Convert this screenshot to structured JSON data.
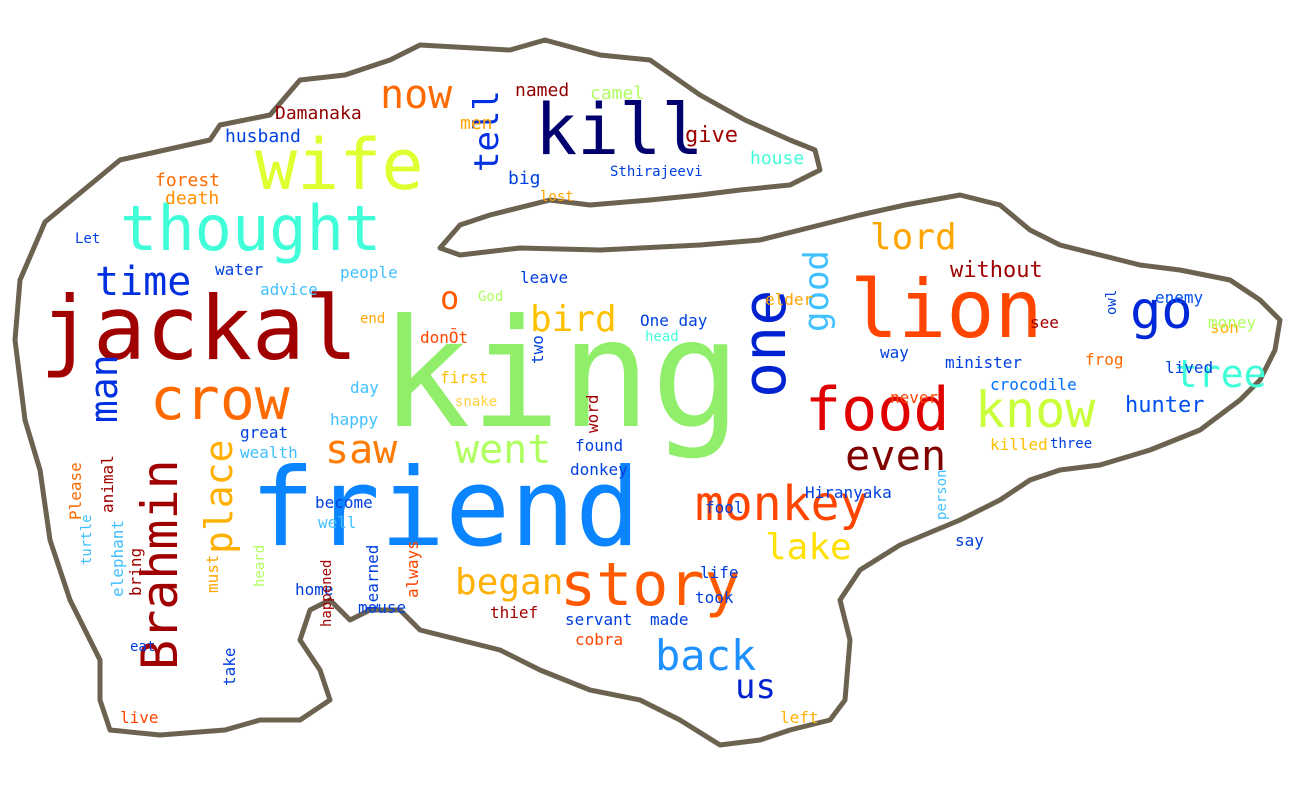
{
  "words": [
    {
      "text": "king",
      "color": "#90ee6a"
    },
    {
      "text": "friend",
      "color": "#0a84ff"
    },
    {
      "text": "jackal",
      "color": "#a00000"
    },
    {
      "text": "lion",
      "color": "#ff4500"
    },
    {
      "text": "wife",
      "color": "#e0ff30"
    },
    {
      "text": "kill",
      "color": "#00006e"
    },
    {
      "text": "thought",
      "color": "#40ffd8"
    },
    {
      "text": "one",
      "color": "#0022d0"
    },
    {
      "text": "crow",
      "color": "#ff6a00"
    },
    {
      "text": "food",
      "color": "#e00000"
    },
    {
      "text": "story",
      "color": "#ff5a00"
    },
    {
      "text": "Brahmin",
      "color": "#a00000"
    },
    {
      "text": "monkey",
      "color": "#ff4500"
    },
    {
      "text": "know",
      "color": "#c8ff3a"
    },
    {
      "text": "go",
      "color": "#0028d8"
    },
    {
      "text": "even",
      "color": "#800000"
    },
    {
      "text": "time",
      "color": "#0030e0"
    },
    {
      "text": "went",
      "color": "#b0ff60"
    },
    {
      "text": "saw",
      "color": "#ff7a00"
    },
    {
      "text": "now",
      "color": "#ff6a00"
    },
    {
      "text": "place",
      "color": "#ffb000"
    },
    {
      "text": "man",
      "color": "#0030e0"
    },
    {
      "text": "back",
      "color": "#1e90ff"
    },
    {
      "text": "lake",
      "color": "#ffe000"
    },
    {
      "text": "began",
      "color": "#ffb000"
    },
    {
      "text": "tell",
      "color": "#0030e0"
    },
    {
      "text": "good",
      "color": "#40c0ff"
    },
    {
      "text": "tree",
      "color": "#40ffd8"
    },
    {
      "text": "lord",
      "color": "#ffa500"
    },
    {
      "text": "bird",
      "color": "#ffc000"
    },
    {
      "text": "o",
      "color": "#ff5a00"
    },
    {
      "text": "us",
      "color": "#0022d0"
    },
    {
      "text": "hunter",
      "color": "#0050f0"
    },
    {
      "text": "without",
      "color": "#a00000"
    },
    {
      "text": "give",
      "color": "#a00000"
    },
    {
      "text": "camel",
      "color": "#b0ff60"
    },
    {
      "text": "named",
      "color": "#900000"
    },
    {
      "text": "Damanaka",
      "color": "#900000"
    },
    {
      "text": "husband",
      "color": "#0040e0"
    },
    {
      "text": "house",
      "color": "#40ffd8"
    },
    {
      "text": "men",
      "color": "#ffa500"
    },
    {
      "text": "forest",
      "color": "#ff6a00"
    },
    {
      "text": "death",
      "color": "#ff9000"
    },
    {
      "text": "big",
      "color": "#0040e0"
    },
    {
      "text": "lost",
      "color": "#ffa500"
    },
    {
      "text": "Sthirajeevi",
      "color": "#0040e0"
    },
    {
      "text": "water",
      "color": "#0040e0"
    },
    {
      "text": "people",
      "color": "#40c0ff"
    },
    {
      "text": "advice",
      "color": "#40c0ff"
    },
    {
      "text": "Let",
      "color": "#0040e0"
    },
    {
      "text": "God",
      "color": "#b0ff60"
    },
    {
      "text": "leave",
      "color": "#0040e0"
    },
    {
      "text": "elder",
      "color": "#ffa500"
    },
    {
      "text": "end",
      "color": "#ffa500"
    },
    {
      "text": "donÕt",
      "color": "#ff4500"
    },
    {
      "text": "One day",
      "color": "#0040e0"
    },
    {
      "text": "head",
      "color": "#40ffd8"
    },
    {
      "text": "way",
      "color": "#0040e0"
    },
    {
      "text": "minister",
      "color": "#0040e0"
    },
    {
      "text": "frog",
      "color": "#ff6a00"
    },
    {
      "text": "crocodile",
      "color": "#0070ff"
    },
    {
      "text": "see",
      "color": "#a00000"
    },
    {
      "text": "enemy",
      "color": "#0050f0"
    },
    {
      "text": "son",
      "color": "#ffb000"
    },
    {
      "text": "money",
      "color": "#b0ff60"
    },
    {
      "text": "lived",
      "color": "#0040e0"
    },
    {
      "text": "owl",
      "color": "#0040e0"
    },
    {
      "text": "killed",
      "color": "#ffc000"
    },
    {
      "text": "three",
      "color": "#0040e0"
    },
    {
      "text": "never",
      "color": "#ff4500"
    },
    {
      "text": "first",
      "color": "#ffc000"
    },
    {
      "text": "snake",
      "color": "#ffd040"
    },
    {
      "text": "two",
      "color": "#0040e0"
    },
    {
      "text": "word",
      "color": "#a00000"
    },
    {
      "text": "found",
      "color": "#0040e0"
    },
    {
      "text": "donkey",
      "color": "#0040e0"
    },
    {
      "text": "day",
      "color": "#40c0ff"
    },
    {
      "text": "happy",
      "color": "#40c0ff"
    },
    {
      "text": "great",
      "color": "#0040e0"
    },
    {
      "text": "wealth",
      "color": "#40c0ff"
    },
    {
      "text": "animal",
      "color": "#a00000"
    },
    {
      "text": "Please",
      "color": "#ff6a00"
    },
    {
      "text": "become",
      "color": "#0040e0"
    },
    {
      "text": "well",
      "color": "#40c0ff"
    },
    {
      "text": "learned",
      "color": "#0040e0"
    },
    {
      "text": "always",
      "color": "#ff4500"
    },
    {
      "text": "mouse",
      "color": "#0040e0"
    },
    {
      "text": "thief",
      "color": "#a00000"
    },
    {
      "text": "servant",
      "color": "#0040e0"
    },
    {
      "text": "made",
      "color": "#0040e0"
    },
    {
      "text": "cobra",
      "color": "#ff4500"
    },
    {
      "text": "life",
      "color": "#0040e0"
    },
    {
      "text": "took",
      "color": "#0040e0"
    },
    {
      "text": "say",
      "color": "#0040e0"
    },
    {
      "text": "person",
      "color": "#40c0ff"
    },
    {
      "text": "Hiranyaka",
      "color": "#0040e0"
    },
    {
      "text": "fool",
      "color": "#0040e0"
    },
    {
      "text": "left",
      "color": "#ffb000"
    },
    {
      "text": "bring",
      "color": "#a00000"
    },
    {
      "text": "must",
      "color": "#ffa500"
    },
    {
      "text": "elephant",
      "color": "#40c0ff"
    },
    {
      "text": "take",
      "color": "#0040e0"
    },
    {
      "text": "home",
      "color": "#0040e0"
    },
    {
      "text": "live",
      "color": "#ff4500"
    },
    {
      "text": "turtle",
      "color": "#40c0ff"
    },
    {
      "text": "eat",
      "color": "#0040e0"
    },
    {
      "text": "heard",
      "color": "#b0ff60"
    },
    {
      "text": "happened",
      "color": "#a00000"
    }
  ]
}
